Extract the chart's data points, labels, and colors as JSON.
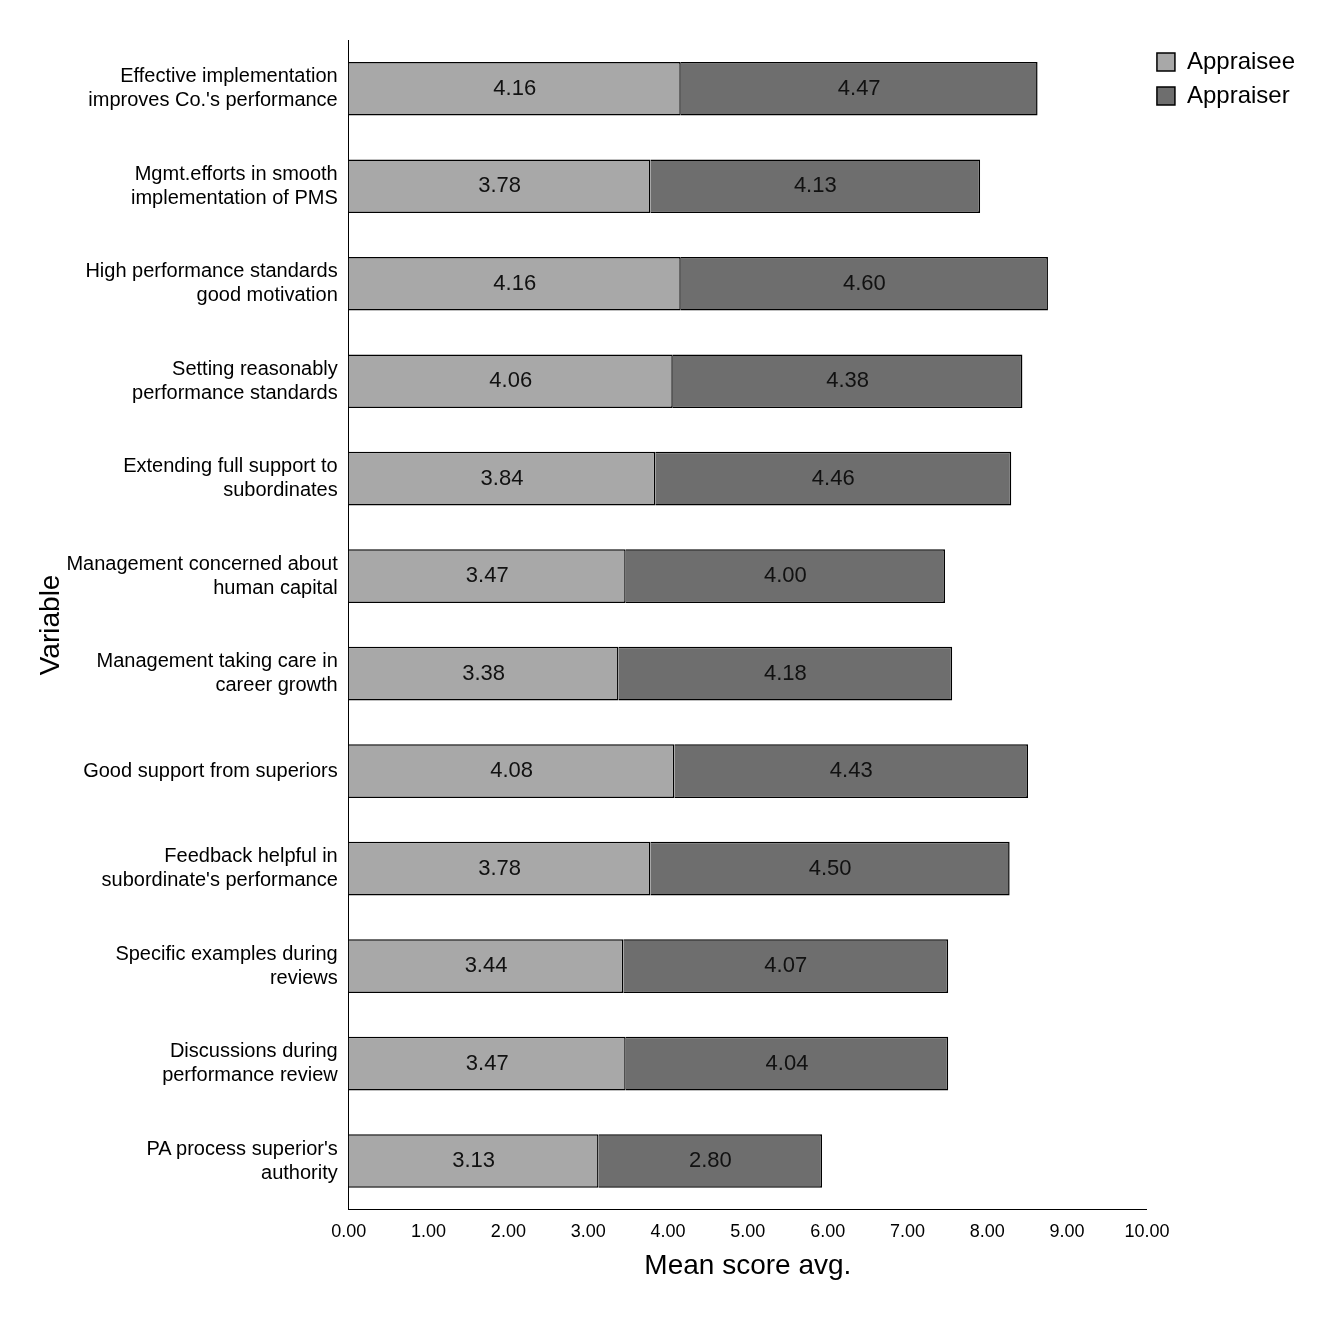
{
  "chart_data": {
    "type": "bar",
    "orientation": "horizontal",
    "stacked": true,
    "categories": [
      "Effective implementation improves Co.'s performance",
      "Mgmt.efforts in smooth implementation of PMS",
      "High performance standards good motivation",
      "Setting reasonably performance standards",
      "Extending full support to subordinates",
      "Management concerned about human capital",
      "Management taking care in career growth",
      "Good support from superiors",
      "Feedback helpful in subordinate's performance",
      "Specific examples during reviews",
      "Discussions during performance review",
      "PA process superior's authority"
    ],
    "series": [
      {
        "name": "Appraisee",
        "color": "#a8a8a8",
        "values": [
          4.16,
          3.78,
          4.16,
          4.06,
          3.84,
          3.47,
          3.38,
          4.08,
          3.78,
          3.44,
          3.47,
          3.13
        ],
        "value_labels": [
          "4.16",
          "3.78",
          "4.16",
          "4.06",
          "3.84",
          "3.47",
          "3.38",
          "4.08",
          "3.78",
          "3.44",
          "3.47",
          "3.13"
        ]
      },
      {
        "name": "Appraiser",
        "color": "#6e6e6e",
        "values": [
          4.47,
          4.13,
          4.6,
          4.38,
          4.46,
          4.0,
          4.18,
          4.43,
          4.5,
          4.07,
          4.04,
          2.8
        ],
        "value_labels": [
          "4.47",
          "4.13",
          "4.60",
          "4.38",
          "4.46",
          "4.00",
          "4.18",
          "4.43",
          "4.50",
          "4.07",
          "4.04",
          "2.80"
        ]
      }
    ],
    "xlim": [
      0,
      10
    ],
    "xticks": [
      {
        "value": 0,
        "label": "0.00"
      },
      {
        "value": 1,
        "label": "1.00"
      },
      {
        "value": 2,
        "label": "2.00"
      },
      {
        "value": 3,
        "label": "3.00"
      },
      {
        "value": 4,
        "label": "4.00"
      },
      {
        "value": 5,
        "label": "5.00"
      },
      {
        "value": 6,
        "label": "6.00"
      },
      {
        "value": 7,
        "label": "7.00"
      },
      {
        "value": 8,
        "label": "8.00"
      },
      {
        "value": 9,
        "label": "9.00"
      },
      {
        "value": 10,
        "label": "10.00"
      }
    ],
    "xlabel": "Mean score avg.",
    "ylabel": "Variable",
    "legend": "right"
  }
}
